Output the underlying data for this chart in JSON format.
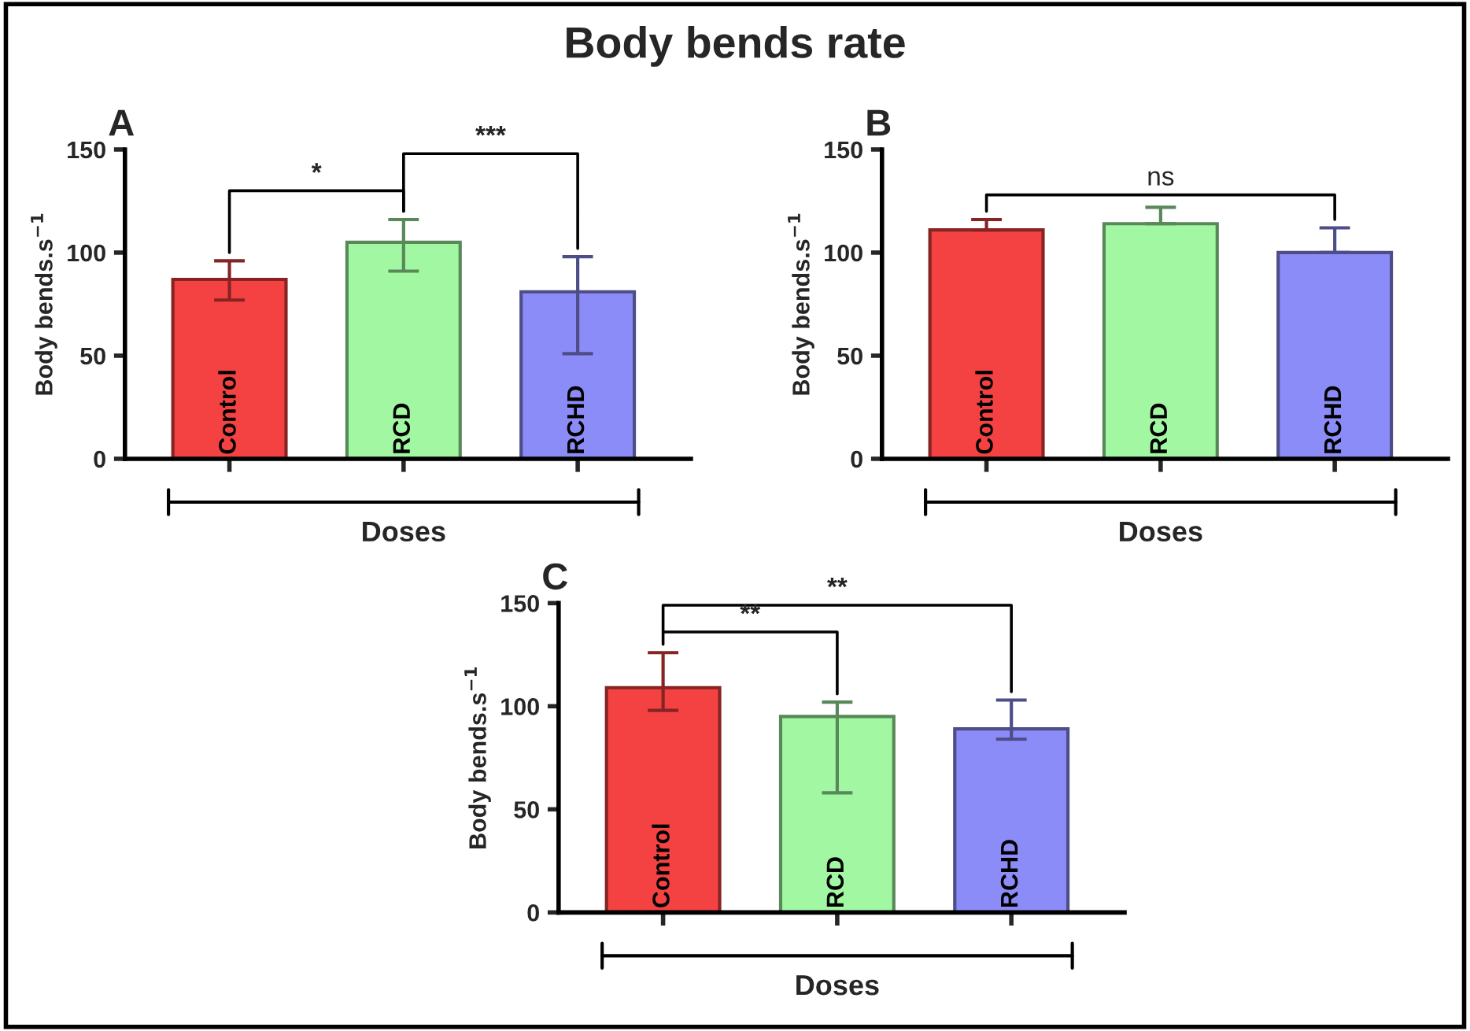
{
  "chart_data": [
    {
      "type": "bar",
      "title": "Body bends rate",
      "ylabel": "Body bends.s$^{−1}$",
      "xlabel": "Doses",
      "categories": [
        "Control",
        "RCD",
        "RCHD"
      ],
      "values": [
        87,
        105,
        81
      ],
      "errors": [
        [
          77,
          96
        ],
        [
          91,
          116
        ],
        [
          51,
          98
        ]
      ],
      "colors": [
        "#f44242",
        "#a2f8a2",
        "#8c8cf8"
      ],
      "ylim": [
        0,
        150
      ],
      "yticks": [
        0,
        50,
        100,
        150
      ],
      "grid": false,
      "legend": false,
      "annotations": [
        "A",
        "*",
        "***"
      ]
    },
    {
      "type": "bar",
      "ylabel": "Body bends.s$^{−1}$",
      "xlabel": "Doses",
      "categories": [
        "Control",
        "RCD",
        "RCHD"
      ],
      "values": [
        111,
        114,
        100
      ],
      "errors": [
        [
          111,
          116
        ],
        [
          114,
          122
        ],
        [
          100,
          112
        ]
      ],
      "colors": [
        "#f44242",
        "#a2f8a2",
        "#8c8cf8"
      ],
      "ylim": [
        0,
        150
      ],
      "yticks": [
        0,
        50,
        100,
        150
      ],
      "grid": false,
      "legend": false,
      "annotations": [
        "B",
        "ns"
      ]
    },
    {
      "type": "bar",
      "ylabel": "Body bends.s$^{−1}$",
      "xlabel": "Doses",
      "categories": [
        "Control",
        "RCD",
        "RCHD"
      ],
      "values": [
        109,
        95,
        89
      ],
      "errors": [
        [
          98,
          126
        ],
        [
          58,
          102
        ],
        [
          84,
          103
        ]
      ],
      "colors": [
        "#f44242",
        "#a2f8a2",
        "#8c8cf8"
      ],
      "ylim": [
        0,
        150
      ],
      "yticks": [
        0,
        50,
        100,
        150
      ],
      "grid": false,
      "legend": false,
      "annotations": [
        "C",
        "**",
        "**"
      ]
    }
  ]
}
